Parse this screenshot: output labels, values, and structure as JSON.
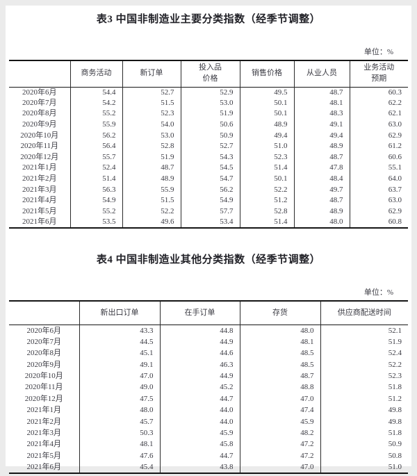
{
  "page": {
    "background_color": "#ebebeb",
    "panel_color": "#ffffff",
    "text_color": "#3a3a42",
    "border_color": "#141414"
  },
  "table3": {
    "title": "表3 中国非制造业主要分类指数（经季节调整）",
    "unit_label": "单位：%",
    "columns": [
      "商务活动",
      "新订单",
      "投入品\n价格",
      "销售价格",
      "从业人员",
      "业务活动\n预期"
    ],
    "rows": [
      {
        "label": "2020年6月",
        "values": [
          "54.4",
          "52.7",
          "52.9",
          "49.5",
          "48.7",
          "60.3"
        ]
      },
      {
        "label": "2020年7月",
        "values": [
          "54.2",
          "51.5",
          "53.0",
          "50.1",
          "48.1",
          "62.2"
        ]
      },
      {
        "label": "2020年8月",
        "values": [
          "55.2",
          "52.3",
          "51.9",
          "50.1",
          "48.3",
          "62.1"
        ]
      },
      {
        "label": "2020年9月",
        "values": [
          "55.9",
          "54.0",
          "50.6",
          "48.9",
          "49.1",
          "63.0"
        ]
      },
      {
        "label": "2020年10月",
        "values": [
          "56.2",
          "53.0",
          "50.9",
          "49.4",
          "49.4",
          "62.9"
        ]
      },
      {
        "label": "2020年11月",
        "values": [
          "56.4",
          "52.8",
          "52.7",
          "51.0",
          "48.9",
          "61.2"
        ]
      },
      {
        "label": "2020年12月",
        "values": [
          "55.7",
          "51.9",
          "54.3",
          "52.3",
          "48.7",
          "60.6"
        ]
      },
      {
        "label": "2021年1月",
        "values": [
          "52.4",
          "48.7",
          "54.5",
          "51.4",
          "47.8",
          "55.1"
        ]
      },
      {
        "label": "2021年2月",
        "values": [
          "51.4",
          "48.9",
          "54.7",
          "50.1",
          "48.4",
          "64.0"
        ]
      },
      {
        "label": "2021年3月",
        "values": [
          "56.3",
          "55.9",
          "56.2",
          "52.2",
          "49.7",
          "63.7"
        ]
      },
      {
        "label": "2021年4月",
        "values": [
          "54.9",
          "51.5",
          "54.9",
          "51.2",
          "48.7",
          "63.0"
        ]
      },
      {
        "label": "2021年5月",
        "values": [
          "55.2",
          "52.2",
          "57.7",
          "52.8",
          "48.9",
          "62.9"
        ]
      },
      {
        "label": "2021年6月",
        "values": [
          "53.5",
          "49.6",
          "53.4",
          "51.4",
          "48.0",
          "60.8"
        ]
      }
    ]
  },
  "table4": {
    "title": "表4 中国非制造业其他分类指数（经季节调整）",
    "unit_label": "单位：%",
    "columns": [
      "新出口订单",
      "在手订单",
      "存货",
      "供应商配送时间"
    ],
    "rows": [
      {
        "label": "2020年6月",
        "values": [
          "43.3",
          "44.8",
          "48.0",
          "52.1"
        ]
      },
      {
        "label": "2020年7月",
        "values": [
          "44.5",
          "44.9",
          "48.1",
          "51.9"
        ]
      },
      {
        "label": "2020年8月",
        "values": [
          "45.1",
          "44.6",
          "48.5",
          "52.4"
        ]
      },
      {
        "label": "2020年9月",
        "values": [
          "49.1",
          "46.3",
          "48.5",
          "52.2"
        ]
      },
      {
        "label": "2020年10月",
        "values": [
          "47.0",
          "44.9",
          "48.7",
          "52.3"
        ]
      },
      {
        "label": "2020年11月",
        "values": [
          "49.0",
          "45.2",
          "48.8",
          "51.8"
        ]
      },
      {
        "label": "2020年12月",
        "values": [
          "47.5",
          "44.7",
          "47.0",
          "51.2"
        ]
      },
      {
        "label": "2021年1月",
        "values": [
          "48.0",
          "44.0",
          "47.4",
          "49.8"
        ]
      },
      {
        "label": "2021年2月",
        "values": [
          "45.7",
          "44.0",
          "45.9",
          "49.8"
        ]
      },
      {
        "label": "2021年3月",
        "values": [
          "50.3",
          "45.9",
          "48.2",
          "51.8"
        ]
      },
      {
        "label": "2021年4月",
        "values": [
          "48.1",
          "45.8",
          "47.2",
          "50.9"
        ]
      },
      {
        "label": "2021年5月",
        "values": [
          "47.6",
          "44.7",
          "47.2",
          "50.8"
        ]
      },
      {
        "label": "2021年6月",
        "values": [
          "45.4",
          "43.8",
          "47.0",
          "51.0"
        ]
      }
    ]
  }
}
